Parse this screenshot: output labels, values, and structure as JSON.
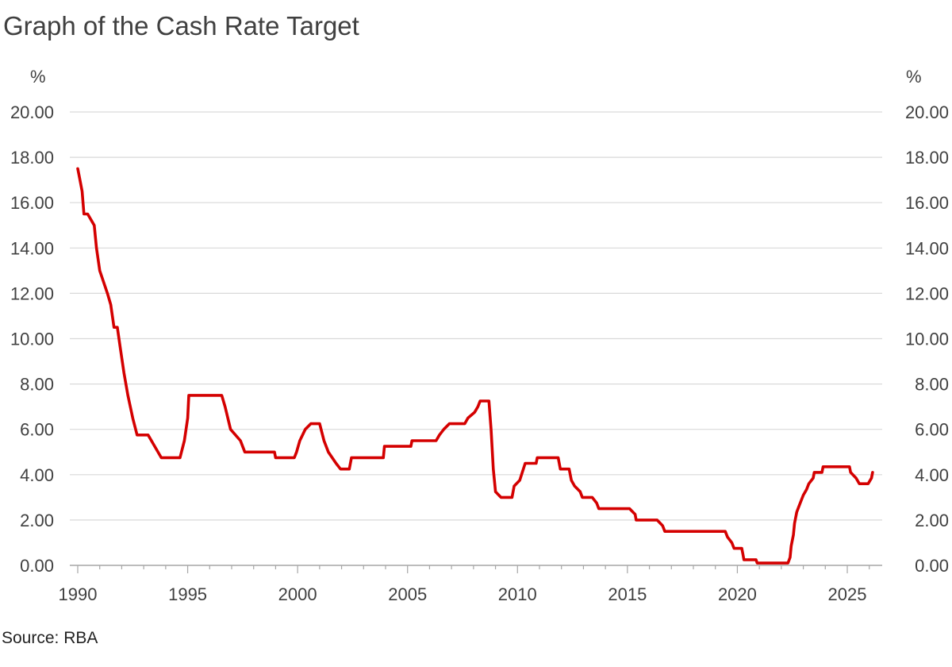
{
  "title": "Graph of the Cash Rate Target",
  "source": "Source: RBA",
  "chart_data": {
    "type": "line",
    "title": "Graph of the Cash Rate Target",
    "left_unit": "%",
    "right_unit": "%",
    "xlim": [
      1990,
      2026.2
    ],
    "ylim": [
      0,
      20
    ],
    "y_ticks": [
      "0.00",
      "2.00",
      "4.00",
      "6.00",
      "8.00",
      "10.00",
      "12.00",
      "14.00",
      "16.00",
      "18.00",
      "20.00"
    ],
    "x_ticks": [
      "1990",
      "1995",
      "2000",
      "2005",
      "2010",
      "2015",
      "2020",
      "2025"
    ],
    "grid": true,
    "line_color": "#d40000",
    "grid_color": "#d9d9d9",
    "axis_color": "#a6a6a6",
    "series": [
      {
        "values": [
          [
            1990.0,
            17.5
          ],
          [
            1990.1,
            17.0
          ],
          [
            1990.2,
            16.5
          ],
          [
            1990.28,
            15.5
          ],
          [
            1990.45,
            15.5
          ],
          [
            1990.75,
            15.0
          ],
          [
            1990.85,
            14.0
          ],
          [
            1991.0,
            13.0
          ],
          [
            1991.35,
            12.0
          ],
          [
            1991.5,
            11.5
          ],
          [
            1991.65,
            10.5
          ],
          [
            1991.8,
            10.5
          ],
          [
            1991.95,
            9.5
          ],
          [
            1992.1,
            8.5
          ],
          [
            1992.28,
            7.5
          ],
          [
            1992.5,
            6.5
          ],
          [
            1992.7,
            5.75
          ],
          [
            1993.2,
            5.75
          ],
          [
            1993.5,
            5.25
          ],
          [
            1993.8,
            4.75
          ],
          [
            1994.65,
            4.75
          ],
          [
            1994.85,
            5.5
          ],
          [
            1995.0,
            6.5
          ],
          [
            1995.05,
            7.5
          ],
          [
            1996.55,
            7.5
          ],
          [
            1996.7,
            7.0
          ],
          [
            1996.95,
            6.0
          ],
          [
            1997.4,
            5.5
          ],
          [
            1997.6,
            5.0
          ],
          [
            1998.95,
            5.0
          ],
          [
            1999.0,
            4.75
          ],
          [
            1999.85,
            4.75
          ],
          [
            1999.95,
            5.0
          ],
          [
            2000.1,
            5.5
          ],
          [
            2000.35,
            6.0
          ],
          [
            2000.6,
            6.25
          ],
          [
            2001.0,
            6.25
          ],
          [
            2001.2,
            5.5
          ],
          [
            2001.4,
            5.0
          ],
          [
            2001.75,
            4.5
          ],
          [
            2001.95,
            4.25
          ],
          [
            2002.35,
            4.25
          ],
          [
            2002.45,
            4.75
          ],
          [
            2003.9,
            4.75
          ],
          [
            2003.95,
            5.25
          ],
          [
            2005.15,
            5.25
          ],
          [
            2005.2,
            5.5
          ],
          [
            2006.3,
            5.5
          ],
          [
            2006.45,
            5.75
          ],
          [
            2006.65,
            6.0
          ],
          [
            2006.9,
            6.25
          ],
          [
            2007.6,
            6.25
          ],
          [
            2007.75,
            6.5
          ],
          [
            2008.05,
            6.75
          ],
          [
            2008.2,
            7.0
          ],
          [
            2008.3,
            7.25
          ],
          [
            2008.7,
            7.25
          ],
          [
            2008.8,
            6.0
          ],
          [
            2008.9,
            4.25
          ],
          [
            2009.0,
            3.25
          ],
          [
            2009.25,
            3.0
          ],
          [
            2009.75,
            3.0
          ],
          [
            2009.85,
            3.5
          ],
          [
            2010.1,
            3.75
          ],
          [
            2010.35,
            4.5
          ],
          [
            2010.85,
            4.5
          ],
          [
            2010.9,
            4.75
          ],
          [
            2011.85,
            4.75
          ],
          [
            2011.95,
            4.25
          ],
          [
            2012.35,
            4.25
          ],
          [
            2012.45,
            3.75
          ],
          [
            2012.6,
            3.5
          ],
          [
            2012.85,
            3.25
          ],
          [
            2012.95,
            3.0
          ],
          [
            2013.4,
            3.0
          ],
          [
            2013.6,
            2.75
          ],
          [
            2013.7,
            2.5
          ],
          [
            2015.1,
            2.5
          ],
          [
            2015.35,
            2.25
          ],
          [
            2015.4,
            2.0
          ],
          [
            2016.35,
            2.0
          ],
          [
            2016.6,
            1.75
          ],
          [
            2016.7,
            1.5
          ],
          [
            2019.45,
            1.5
          ],
          [
            2019.55,
            1.25
          ],
          [
            2019.75,
            1.0
          ],
          [
            2019.85,
            0.75
          ],
          [
            2020.2,
            0.75
          ],
          [
            2020.25,
            0.5
          ],
          [
            2020.3,
            0.25
          ],
          [
            2020.85,
            0.25
          ],
          [
            2020.9,
            0.1
          ],
          [
            2022.3,
            0.1
          ],
          [
            2022.4,
            0.35
          ],
          [
            2022.45,
            0.85
          ],
          [
            2022.55,
            1.35
          ],
          [
            2022.6,
            1.85
          ],
          [
            2022.7,
            2.35
          ],
          [
            2022.8,
            2.6
          ],
          [
            2022.9,
            2.85
          ],
          [
            2023.0,
            3.1
          ],
          [
            2023.15,
            3.35
          ],
          [
            2023.25,
            3.6
          ],
          [
            2023.45,
            3.85
          ],
          [
            2023.5,
            4.1
          ],
          [
            2023.85,
            4.1
          ],
          [
            2023.9,
            4.35
          ],
          [
            2025.1,
            4.35
          ],
          [
            2025.15,
            4.1
          ],
          [
            2025.4,
            3.85
          ],
          [
            2025.55,
            3.6
          ],
          [
            2025.95,
            3.6
          ],
          [
            2026.1,
            3.85
          ],
          [
            2026.15,
            4.1
          ]
        ]
      }
    ]
  }
}
